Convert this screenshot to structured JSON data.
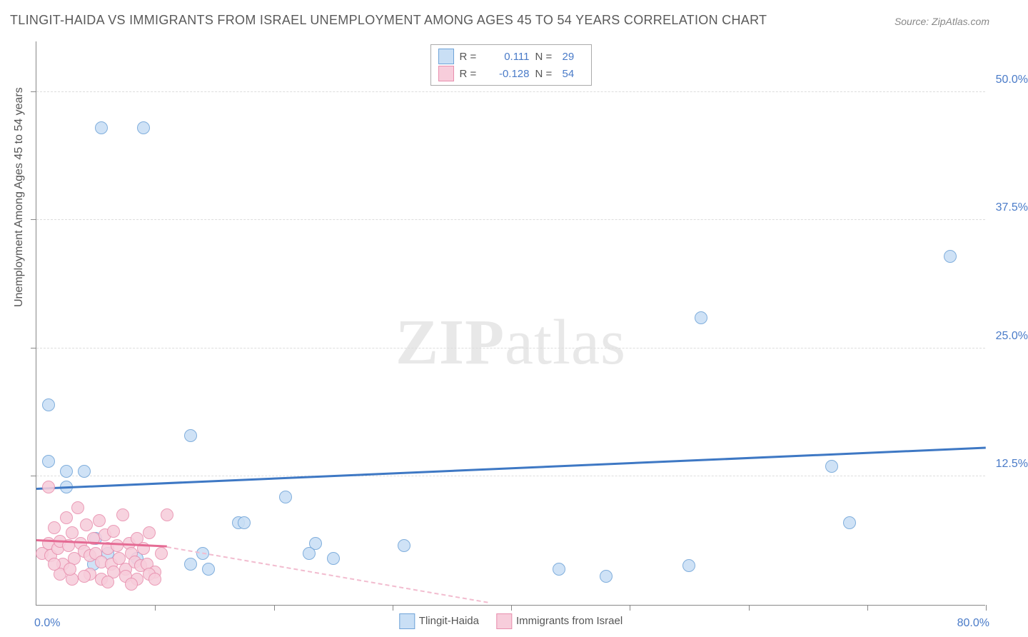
{
  "title": "TLINGIT-HAIDA VS IMMIGRANTS FROM ISRAEL UNEMPLOYMENT AMONG AGES 45 TO 54 YEARS CORRELATION CHART",
  "source": "Source: ZipAtlas.com",
  "ylabel": "Unemployment Among Ages 45 to 54 years",
  "watermark_a": "ZIP",
  "watermark_b": "atlas",
  "chart": {
    "type": "scatter",
    "x_min": 0.0,
    "x_max": 80.0,
    "y_min": 0.0,
    "y_max": 55.0,
    "x_origin_label": "0.0%",
    "x_max_label": "80.0%",
    "x_ticks": [
      10,
      20,
      30,
      40,
      50,
      60,
      70,
      80
    ],
    "y_ticks": [
      {
        "v": 12.5,
        "label": "12.5%"
      },
      {
        "v": 25.0,
        "label": "25.0%"
      },
      {
        "v": 37.5,
        "label": "37.5%"
      },
      {
        "v": 50.0,
        "label": "50.0%"
      }
    ],
    "background_color": "#ffffff",
    "grid_color": "#dddddd",
    "axis_color": "#888888",
    "tick_label_color": "#4a7bc8",
    "series": [
      {
        "name": "Tlingit-Haida",
        "fill": "#c9dff5",
        "stroke": "#6fa3d8",
        "marker_radius": 9,
        "r_value": "0.111",
        "n_value": "29",
        "trend": {
          "x1": 0,
          "y1": 11.2,
          "x2": 80,
          "y2": 15.2,
          "color": "#3e78c4",
          "width": 3,
          "dash": "solid"
        },
        "points": [
          [
            5.5,
            46.5
          ],
          [
            9.0,
            46.5
          ],
          [
            1.0,
            14.0
          ],
          [
            1.0,
            19.5
          ],
          [
            2.5,
            13.0
          ],
          [
            4.0,
            13.0
          ],
          [
            2.5,
            11.5
          ],
          [
            13.0,
            16.5
          ],
          [
            21.0,
            10.5
          ],
          [
            17.0,
            8.0
          ],
          [
            17.5,
            8.0
          ],
          [
            14.0,
            5.0
          ],
          [
            13.0,
            4.0
          ],
          [
            14.5,
            3.5
          ],
          [
            23.5,
            6.0
          ],
          [
            23.0,
            5.0
          ],
          [
            25.0,
            4.5
          ],
          [
            31.0,
            5.8
          ],
          [
            44.0,
            3.5
          ],
          [
            48.0,
            2.8
          ],
          [
            55.0,
            3.8
          ],
          [
            56.0,
            28.0
          ],
          [
            67.0,
            13.5
          ],
          [
            68.5,
            8.0
          ],
          [
            77.0,
            34.0
          ],
          [
            5.0,
            6.5
          ],
          [
            6.0,
            5.0
          ],
          [
            4.8,
            4.0
          ],
          [
            8.5,
            4.5
          ]
        ]
      },
      {
        "name": "Immigrants from Israel",
        "fill": "#f7cddb",
        "stroke": "#e88fae",
        "marker_radius": 9,
        "r_value": "-0.128",
        "n_value": "54",
        "trend_solid": {
          "x1": 0,
          "y1": 6.2,
          "x2": 11,
          "y2": 5.6,
          "color": "#e56b94",
          "width": 3
        },
        "trend_dash": {
          "x1": 11,
          "y1": 5.6,
          "x2": 38,
          "y2": 0.2,
          "color": "#f2bccf",
          "width": 2
        },
        "points": [
          [
            0.5,
            5.0
          ],
          [
            1.0,
            6.0
          ],
          [
            1.2,
            4.8
          ],
          [
            1.5,
            7.5
          ],
          [
            1.8,
            5.5
          ],
          [
            2.0,
            6.2
          ],
          [
            2.2,
            4.0
          ],
          [
            2.5,
            8.5
          ],
          [
            2.7,
            5.8
          ],
          [
            3.0,
            7.0
          ],
          [
            3.2,
            4.5
          ],
          [
            3.5,
            9.5
          ],
          [
            3.7,
            6.0
          ],
          [
            4.0,
            5.2
          ],
          [
            4.2,
            7.8
          ],
          [
            4.5,
            4.8
          ],
          [
            4.8,
            6.5
          ],
          [
            5.0,
            5.0
          ],
          [
            5.3,
            8.2
          ],
          [
            5.5,
            4.2
          ],
          [
            5.8,
            6.8
          ],
          [
            6.0,
            5.5
          ],
          [
            6.3,
            4.0
          ],
          [
            6.5,
            7.2
          ],
          [
            6.8,
            5.8
          ],
          [
            7.0,
            4.5
          ],
          [
            7.3,
            8.8
          ],
          [
            7.5,
            3.5
          ],
          [
            7.8,
            6.0
          ],
          [
            8.0,
            5.0
          ],
          [
            8.3,
            4.2
          ],
          [
            8.5,
            6.5
          ],
          [
            8.8,
            3.8
          ],
          [
            9.0,
            5.5
          ],
          [
            9.3,
            4.0
          ],
          [
            9.5,
            7.0
          ],
          [
            10.0,
            3.2
          ],
          [
            10.5,
            5.0
          ],
          [
            11.0,
            8.8
          ],
          [
            1.0,
            11.5
          ],
          [
            2.0,
            3.0
          ],
          [
            3.0,
            2.5
          ],
          [
            4.5,
            3.0
          ],
          [
            5.5,
            2.5
          ],
          [
            6.5,
            3.2
          ],
          [
            7.5,
            2.8
          ],
          [
            8.5,
            2.5
          ],
          [
            9.5,
            3.0
          ],
          [
            1.5,
            4.0
          ],
          [
            2.8,
            3.5
          ],
          [
            4.0,
            2.8
          ],
          [
            6.0,
            2.2
          ],
          [
            8.0,
            2.0
          ],
          [
            10.0,
            2.5
          ]
        ]
      }
    ]
  },
  "legend": {
    "series1_label": "Tlingit-Haida",
    "series2_label": "Immigrants from Israel"
  },
  "stats": {
    "r_label": "R =",
    "n_label": "N ="
  }
}
